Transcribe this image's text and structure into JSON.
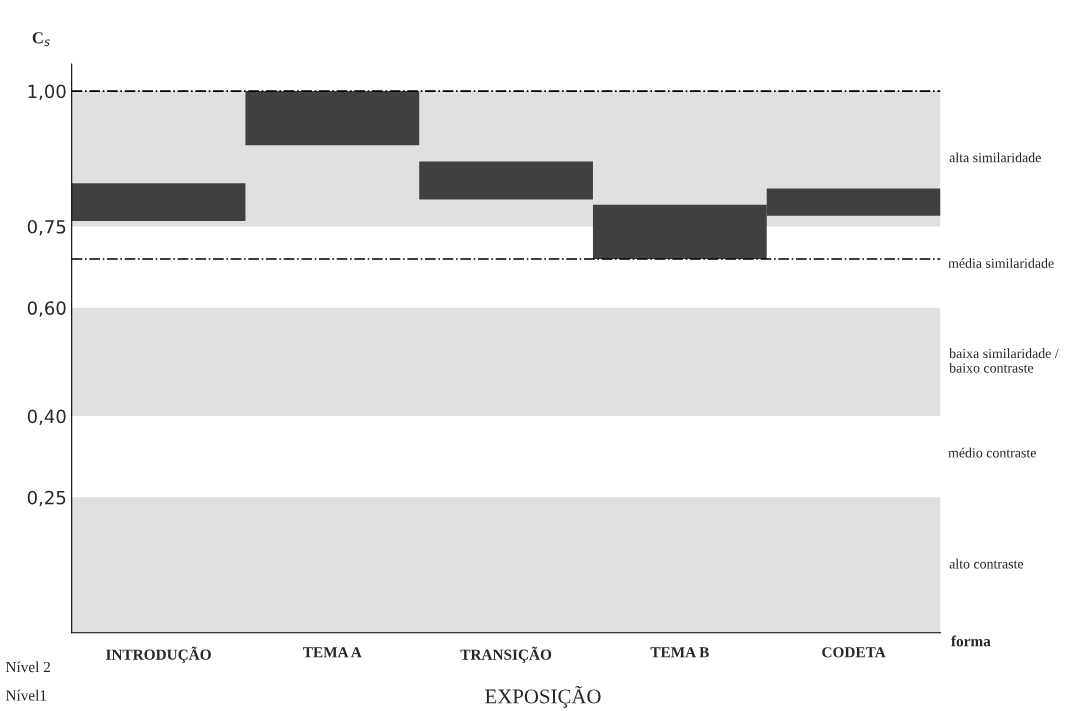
{
  "chart_data": {
    "type": "bar",
    "ylabel": "C$_{s}$",
    "xlabel": "forma",
    "categories": [
      "INTRODUÇÃO",
      "TEMA A",
      "TRANSIÇÃO",
      "TEMA B",
      "CODETA"
    ],
    "base": [
      0.76,
      0.9,
      0.8,
      0.69,
      0.77
    ],
    "values": [
      0.07,
      0.1,
      0.07,
      0.1,
      0.05
    ],
    "color": "#404040",
    "ylim": [
      0,
      1.05
    ],
    "yticks": [
      {
        "value": 0.25,
        "label": "0,25"
      },
      {
        "value": 0.4,
        "label": "0,40"
      },
      {
        "value": 0.6,
        "label": "0,60"
      },
      {
        "value": 0.75,
        "label": "0,75"
      },
      {
        "value": 1.0,
        "label": "1,00"
      }
    ],
    "bands": [
      {
        "axis": "y",
        "from": 0.75,
        "to": 1.0,
        "label": "alta similaridade",
        "color": "#e0e0e0"
      },
      {
        "axis": "y",
        "from": 0.4,
        "to": 0.6,
        "label": "baixa similaridade /\nbaixo contraste",
        "color": "#e0e0e0"
      },
      {
        "axis": "y",
        "from": 0.0,
        "to": 0.25,
        "label": "alto contraste",
        "color": "#e0e0e0"
      }
    ],
    "ref_lines": [
      {
        "axis": "y",
        "value": 1.0,
        "color": "#000000",
        "line_style": "dashdot"
      },
      {
        "axis": "y",
        "value": 0.69,
        "color": "#000000",
        "line_style": "dashdot"
      }
    ],
    "annotations": [
      "Nível 2",
      "Nível1",
      "EXPOSIÇÃO",
      "média similaridade",
      "médio contraste"
    ],
    "grid": false,
    "legend": false
  }
}
